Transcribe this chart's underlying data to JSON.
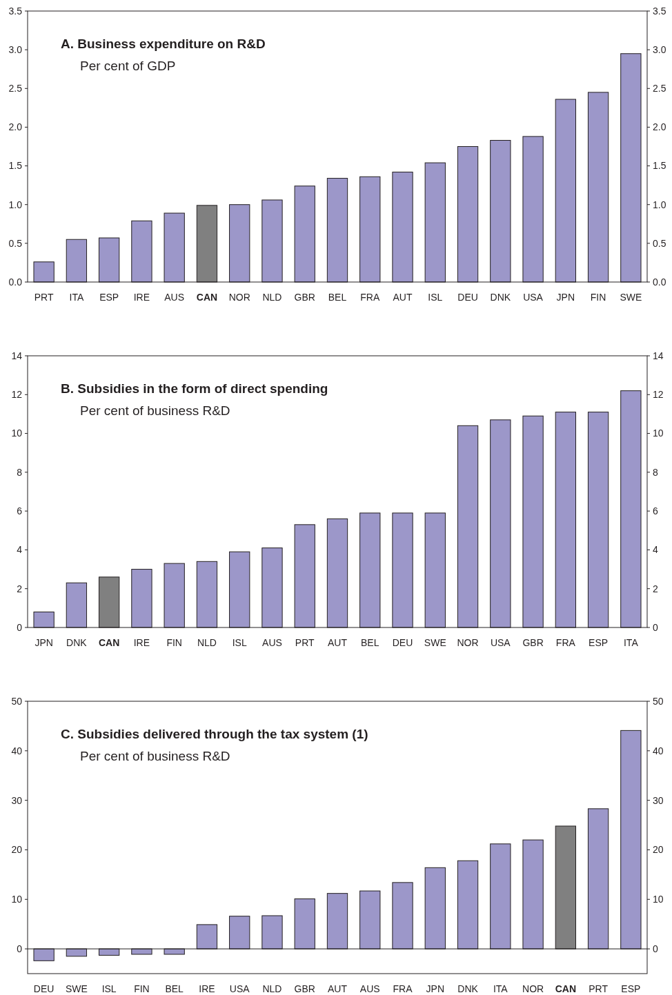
{
  "chart_data": [
    {
      "type": "bar",
      "title": "A. Business expenditure on R&D",
      "subtitle": "Per cent of GDP",
      "categories": [
        "PRT",
        "ITA",
        "ESP",
        "IRE",
        "AUS",
        "CAN",
        "NOR",
        "NLD",
        "GBR",
        "BEL",
        "FRA",
        "AUT",
        "ISL",
        "DEU",
        "DNK",
        "USA",
        "JPN",
        "FIN",
        "SWE"
      ],
      "values": [
        0.26,
        0.55,
        0.57,
        0.79,
        0.89,
        0.99,
        1.0,
        1.06,
        1.24,
        1.34,
        1.36,
        1.42,
        1.54,
        1.75,
        1.83,
        1.88,
        2.36,
        2.45,
        2.95
      ],
      "colors": [
        "#9c97c9",
        "#9c97c9",
        "#9c97c9",
        "#9c97c9",
        "#9c97c9",
        "#808080",
        "#9c97c9",
        "#9c97c9",
        "#9c97c9",
        "#9c97c9",
        "#9c97c9",
        "#9c97c9",
        "#9c97c9",
        "#9c97c9",
        "#9c97c9",
        "#9c97c9",
        "#9c97c9",
        "#9c97c9",
        "#9c97c9"
      ],
      "ylim": [
        0,
        3.5
      ],
      "yticks": [
        {
          "value": 0,
          "label": "0.0"
        },
        {
          "value": 0.5,
          "label": "0.5"
        },
        {
          "value": 1,
          "label": "1.0"
        },
        {
          "value": 1.5,
          "label": "1.5"
        },
        {
          "value": 2,
          "label": "2.0"
        },
        {
          "value": 2.5,
          "label": "2.5"
        },
        {
          "value": 3,
          "label": "3.0"
        },
        {
          "value": 3.5,
          "label": "3.5"
        }
      ],
      "y2lim": [
        0,
        3.5
      ],
      "y2ticks": [
        {
          "value": 0,
          "label": "0.0"
        },
        {
          "value": 0.5,
          "label": "0.5"
        },
        {
          "value": 1,
          "label": "1.0"
        },
        {
          "value": 1.5,
          "label": "1.5"
        },
        {
          "value": 2,
          "label": "2.0"
        },
        {
          "value": 2.5,
          "label": "2.5"
        },
        {
          "value": 3,
          "label": "3.0"
        },
        {
          "value": 3.5,
          "label": "3.5"
        }
      ]
    },
    {
      "type": "bar",
      "title": "B. Subsidies in the form of direct spending",
      "subtitle": "Per cent of business R&D",
      "categories": [
        "JPN",
        "DNK",
        "CAN",
        "IRE",
        "FIN",
        "NLD",
        "ISL",
        "AUS",
        "PRT",
        "AUT",
        "BEL",
        "DEU",
        "SWE",
        "NOR",
        "USA",
        "GBR",
        "FRA",
        "ESP",
        "ITA"
      ],
      "values": [
        0.8,
        2.3,
        2.6,
        3.0,
        3.3,
        3.4,
        3.9,
        4.1,
        5.3,
        5.6,
        5.9,
        5.9,
        5.9,
        10.4,
        10.7,
        10.9,
        11.1,
        11.1,
        12.2
      ],
      "colors": [
        "#9c97c9",
        "#9c97c9",
        "#808080",
        "#9c97c9",
        "#9c97c9",
        "#9c97c9",
        "#9c97c9",
        "#9c97c9",
        "#9c97c9",
        "#9c97c9",
        "#9c97c9",
        "#9c97c9",
        "#9c97c9",
        "#9c97c9",
        "#9c97c9",
        "#9c97c9",
        "#9c97c9",
        "#9c97c9",
        "#9c97c9"
      ],
      "ylim": [
        0,
        14
      ],
      "yticks": [
        0,
        2,
        4,
        6,
        8,
        10,
        12,
        14
      ],
      "y2lim": [
        0,
        14
      ],
      "y2ticks": [
        0,
        2,
        4,
        6,
        8,
        10,
        12,
        14
      ]
    },
    {
      "type": "bar",
      "title": "C. Subsidies delivered through the tax system (1)",
      "subtitle": "Per cent of business R&D",
      "categories": [
        "DEU",
        "SWE",
        "ISL",
        "FIN",
        "BEL",
        "IRE",
        "USA",
        "NLD",
        "GBR",
        "AUT",
        "AUS",
        "FRA",
        "JPN",
        "DNK",
        "ITA",
        "NOR",
        "CAN",
        "PRT",
        "ESP"
      ],
      "values": [
        -2.4,
        -1.5,
        -1.3,
        -1.1,
        -1.1,
        4.9,
        6.6,
        6.7,
        10.1,
        11.2,
        11.7,
        13.4,
        16.4,
        17.8,
        21.2,
        22.0,
        24.8,
        28.3,
        44.1
      ],
      "colors": [
        "#9c97c9",
        "#9c97c9",
        "#9c97c9",
        "#9c97c9",
        "#9c97c9",
        "#9c97c9",
        "#9c97c9",
        "#9c97c9",
        "#9c97c9",
        "#9c97c9",
        "#9c97c9",
        "#9c97c9",
        "#9c97c9",
        "#9c97c9",
        "#9c97c9",
        "#9c97c9",
        "#808080",
        "#9c97c9",
        "#9c97c9"
      ],
      "ylim": [
        -5,
        50
      ],
      "yticks": [
        0,
        10,
        20,
        30,
        40,
        50
      ],
      "y2lim": [
        -5,
        50
      ],
      "y2ticks": [
        0,
        10,
        20,
        30,
        40,
        50
      ],
      "ref_lines": [
        {
          "axis": "y",
          "value": 0
        }
      ]
    }
  ]
}
